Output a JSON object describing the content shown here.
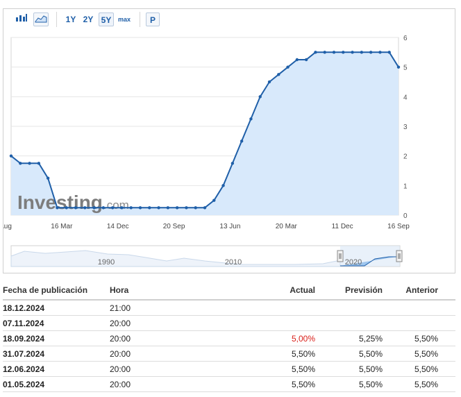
{
  "toolbar": {
    "bar_chart_icon": "bar-chart-icon",
    "area_chart_icon": "area-chart-icon",
    "ranges": [
      "1Y",
      "2Y",
      "5Y",
      "max"
    ],
    "active_range": "5Y",
    "p_label": "P"
  },
  "watermark": {
    "brand": "Investing",
    "suffix": ".com"
  },
  "chart_data": {
    "type": "area",
    "x_tick_labels": [
      "Aug",
      "16 Mar",
      "14 Dec",
      "20 Sep",
      "13 Jun",
      "20 Mar",
      "11 Dec",
      "16 Sep"
    ],
    "y_ticks": [
      0,
      1,
      2,
      3,
      4,
      5,
      6
    ],
    "ylim": [
      0,
      6
    ],
    "grid": true,
    "series": [
      {
        "values": [
          2.0,
          1.75,
          1.75,
          1.75,
          1.25,
          0.25,
          0.25,
          0.25,
          0.25,
          0.25,
          0.25,
          0.25,
          0.25,
          0.25,
          0.25,
          0.25,
          0.25,
          0.25,
          0.25,
          0.25,
          0.25,
          0.25,
          0.5,
          1.0,
          1.75,
          2.5,
          3.25,
          4.0,
          4.5,
          4.75,
          5.0,
          5.25,
          5.25,
          5.5,
          5.5,
          5.5,
          5.5,
          5.5,
          5.5,
          5.5,
          5.5,
          5.5,
          5.0
        ]
      }
    ],
    "colors": {
      "line": "#1f5fa8",
      "fill": "#d8e9fb"
    }
  },
  "navigator": {
    "labels": [
      "1990",
      "2010",
      "2020"
    ]
  },
  "table": {
    "headers": [
      "Fecha de publicación",
      "Hora",
      "Actual",
      "Previsión",
      "Anterior"
    ],
    "rows": [
      {
        "date": "18.12.2024",
        "time": "21:00",
        "actual": "",
        "forecast": "",
        "previous": ""
      },
      {
        "date": "07.11.2024",
        "time": "20:00",
        "actual": "",
        "forecast": "",
        "previous": ""
      },
      {
        "date": "18.09.2024",
        "time": "20:00",
        "actual": "5,00%",
        "forecast": "5,25%",
        "previous": "5,50%"
      },
      {
        "date": "31.07.2024",
        "time": "20:00",
        "actual": "5,50%",
        "forecast": "5,50%",
        "previous": "5,50%"
      },
      {
        "date": "12.06.2024",
        "time": "20:00",
        "actual": "5,50%",
        "forecast": "5,50%",
        "previous": "5,50%"
      },
      {
        "date": "01.05.2024",
        "time": "20:00",
        "actual": "5,50%",
        "forecast": "5,50%",
        "previous": "5,50%"
      }
    ],
    "actual_negative_color": "#d91e18"
  }
}
